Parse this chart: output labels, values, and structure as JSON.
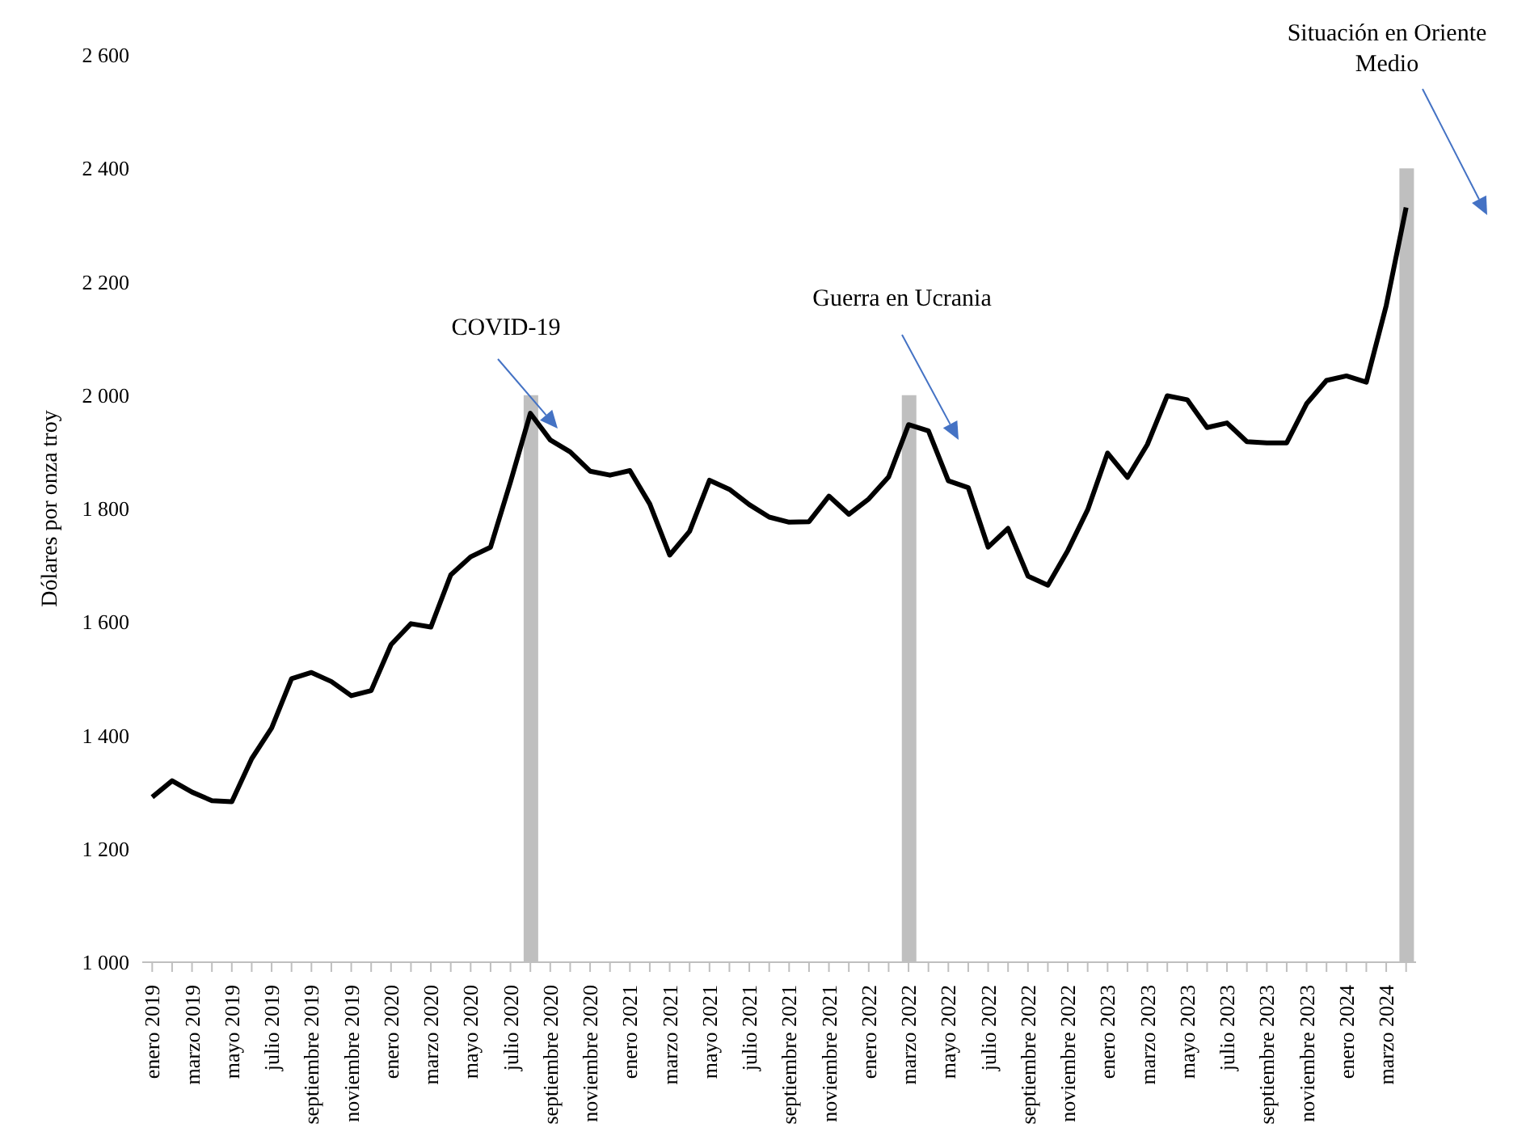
{
  "chart_data": {
    "type": "line",
    "ylabel": "Dólares por onza troy",
    "categories": [
      "enero 2019",
      null,
      "marzo 2019",
      null,
      "mayo 2019",
      null,
      "julio 2019",
      null,
      "septiembre 2019",
      null,
      "noviembre 2019",
      null,
      "enero 2020",
      null,
      "marzo 2020",
      null,
      "mayo 2020",
      null,
      "julio 2020",
      null,
      "septiembre 2020",
      null,
      "noviembre 2020",
      null,
      "enero 2021",
      null,
      "marzo 2021",
      null,
      "mayo 2021",
      null,
      "julio 2021",
      null,
      "septiembre 2021",
      null,
      "noviembre 2021",
      null,
      "enero 2022",
      null,
      "marzo 2022",
      null,
      "mayo 2022",
      null,
      "julio 2022",
      null,
      "septiembre 2022",
      null,
      "noviembre 2022",
      null,
      "enero 2023",
      null,
      "marzo 2023",
      null,
      "mayo 2023",
      null,
      "julio 2023",
      null,
      "septiembre 2023",
      null,
      "noviembre 2023",
      null,
      "enero 2024",
      null,
      "marzo 2024",
      null
    ],
    "series": [
      {
        "type": "bar",
        "color": "#bfbfbf",
        "values": [
          null,
          null,
          null,
          null,
          null,
          null,
          null,
          null,
          null,
          null,
          null,
          null,
          null,
          null,
          null,
          null,
          null,
          null,
          null,
          2000,
          null,
          null,
          null,
          null,
          null,
          null,
          null,
          null,
          null,
          null,
          null,
          null,
          null,
          null,
          null,
          null,
          null,
          null,
          2000,
          null,
          null,
          null,
          null,
          null,
          null,
          null,
          null,
          null,
          null,
          null,
          null,
          null,
          null,
          null,
          null,
          null,
          null,
          null,
          null,
          null,
          null,
          null,
          null,
          2400
        ]
      },
      {
        "color": "#000000",
        "values": [
          1291,
          1320,
          1300,
          1285,
          1283,
          1359,
          1413,
          1500,
          1511,
          1495,
          1470,
          1479,
          1560,
          1597,
          1591,
          1683,
          1715,
          1732,
          1847,
          1968,
          1921,
          1900,
          1866,
          1859,
          1867,
          1808,
          1718,
          1760,
          1850,
          1834,
          1807,
          1785,
          1776,
          1777,
          1822,
          1790,
          1817,
          1856,
          1948,
          1937,
          1849,
          1837,
          1732,
          1765,
          1681,
          1665,
          1726,
          1798,
          1898,
          1855,
          1913,
          1999,
          1992,
          1943,
          1951,
          1918,
          1916,
          1916,
          1985,
          2026,
          2034,
          2023,
          2158,
          2331
        ]
      }
    ],
    "ylim": [
      1000,
      2600
    ],
    "yticks": [
      {
        "value": 1000,
        "label": "1 000"
      },
      {
        "value": 1200,
        "label": "1 200"
      },
      {
        "value": 1400,
        "label": "1 400"
      },
      {
        "value": 1600,
        "label": "1 600"
      },
      {
        "value": 1800,
        "label": "1 800"
      },
      {
        "value": 2000,
        "label": "2 000"
      },
      {
        "value": 2200,
        "label": "2 200"
      },
      {
        "value": 2400,
        "label": "2 400"
      },
      {
        "value": 2600,
        "label": "2 600"
      }
    ],
    "annotations": [
      "COVID-19",
      "Guerra en Ucrania",
      "Situación en Oriente Medio"
    ]
  }
}
